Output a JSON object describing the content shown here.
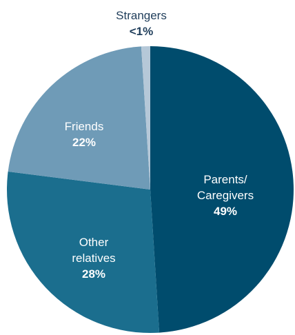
{
  "chart_data": {
    "type": "pie",
    "start_angle_deg": 0,
    "direction": "clockwise",
    "slices": [
      {
        "label_lines": [
          "Parents/",
          "Caregivers"
        ],
        "value_label": "49%",
        "value": 49,
        "color": "#004c6d",
        "text_color": "#ffffff",
        "label_placement": "inside"
      },
      {
        "label_lines": [
          "Other",
          "relatives"
        ],
        "value_label": "28%",
        "value": 28,
        "color": "#1b6e8e",
        "text_color": "#ffffff",
        "label_placement": "inside"
      },
      {
        "label_lines": [
          "Friends"
        ],
        "value_label": "22%",
        "value": 22,
        "color": "#6f9bb7",
        "text_color": "#ffffff",
        "label_placement": "inside"
      },
      {
        "label_lines": [
          "Strangers"
        ],
        "value_label": "<1%",
        "value": 1,
        "color": "#b5c8d8",
        "text_color": "#1f3d5a",
        "label_placement": "outside-top"
      }
    ]
  }
}
